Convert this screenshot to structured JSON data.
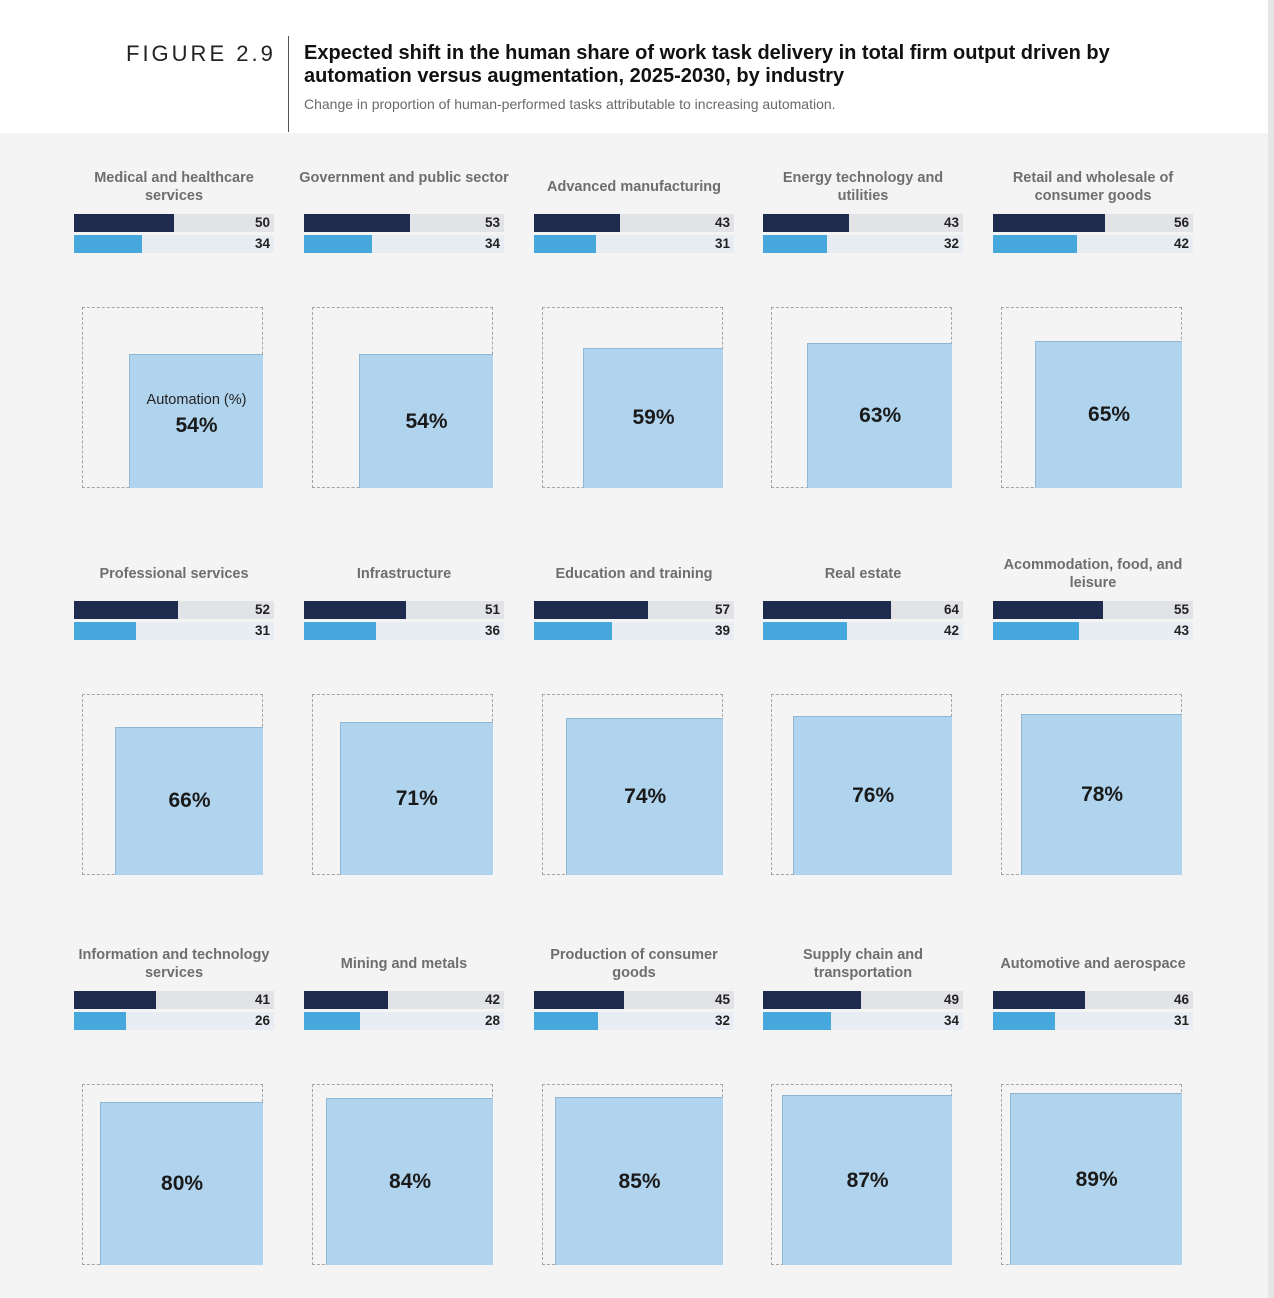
{
  "figure_label": "FIGURE 2.9",
  "title": "Expected shift in the human share of work task delivery in total firm output driven by automation versus augmentation, 2025-2030, by industry",
  "subtitle": "Change in proportion of human-performed tasks attributable to increasing automation.",
  "automation_label": "Automation (%)",
  "colors": {
    "dark_bar": "#1f2a4f",
    "light_bar": "#46a8dd",
    "square_fill": "#b1d4ee",
    "panel_bg": "#f4f4f4"
  },
  "chart_data": {
    "type": "bar",
    "categories": [
      "Medical and healthcare services",
      "Government and public sector",
      "Advanced manufacturing",
      "Energy technology and utilities",
      "Retail and wholesale of consumer goods",
      "Professional services",
      "Infrastructure",
      "Education and training",
      "Real estate",
      "Acommodation, food, and leisure",
      "Information and technology services",
      "Mining and metals",
      "Production of consumer goods",
      "Supply chain and transportation",
      "Automotive and aerospace"
    ],
    "series": [
      {
        "values": [
          50,
          53,
          43,
          43,
          56,
          52,
          51,
          57,
          64,
          55,
          41,
          42,
          45,
          49,
          46
        ]
      },
      {
        "values": [
          34,
          34,
          31,
          32,
          42,
          31,
          36,
          39,
          42,
          43,
          26,
          28,
          32,
          34,
          31
        ]
      },
      {
        "name": "Automation (%)",
        "values": [
          54,
          54,
          59,
          63,
          65,
          66,
          71,
          74,
          76,
          78,
          80,
          84,
          85,
          87,
          89
        ]
      }
    ],
    "value_labels": [
      "54%",
      "54%",
      "59%",
      "63%",
      "65%",
      "66%",
      "71%",
      "74%",
      "76%",
      "78%",
      "80%",
      "84%",
      "85%",
      "87%",
      "89%"
    ],
    "ylim": [
      0,
      100
    ]
  }
}
